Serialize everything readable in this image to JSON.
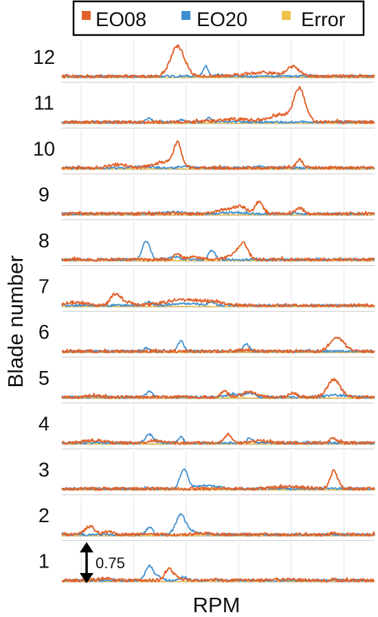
{
  "chart_data": {
    "type": "line",
    "xlabel": "RPM",
    "ylabel": "Blade number",
    "legend": {
      "placement": "top",
      "entries": [
        "EO08",
        "EO20",
        "Error"
      ]
    },
    "annotation": "0.75",
    "grid": true,
    "categories": [
      "1",
      "2",
      "3",
      "4",
      "5",
      "6",
      "7",
      "8",
      "9",
      "10",
      "11",
      "12"
    ],
    "x_domain": [
      0,
      1
    ],
    "colors": {
      "EO08": "#e1622b",
      "EO20": "#3f8fd0",
      "Error": "#efc14a",
      "baseline": "#b2b2b2"
    },
    "series": [
      {
        "name": "EO08",
        "peaks": [
          {
            "blade": 1,
            "peaks": [
              [
                0.13,
                0.08,
                0.022
              ],
              [
                0.34,
                0.4,
                0.012
              ],
              [
                0.36,
                0.16,
                0.015
              ],
              [
                0.72,
                0.05,
                0.03
              ]
            ]
          },
          {
            "blade": 2,
            "peaks": [
              [
                0.09,
                0.35,
                0.015
              ],
              [
                0.15,
                0.12,
                0.015
              ],
              [
                0.45,
                0.05,
                0.03
              ],
              [
                0.87,
                0.06,
                0.01
              ]
            ]
          },
          {
            "blade": 3,
            "peaks": [
              [
                0.73,
                0.08,
                0.05
              ],
              [
                0.87,
                0.73,
                0.012
              ]
            ]
          },
          {
            "blade": 4,
            "peaks": [
              [
                0.1,
                0.11,
                0.03
              ],
              [
                0.3,
                0.1,
                0.02
              ],
              [
                0.53,
                0.35,
                0.012
              ],
              [
                0.63,
                0.1,
                0.025
              ],
              [
                0.87,
                0.18,
                0.012
              ]
            ]
          },
          {
            "blade": 5,
            "peaks": [
              [
                0.1,
                0.06,
                0.02
              ],
              [
                0.52,
                0.22,
                0.012
              ],
              [
                0.6,
                0.18,
                0.025
              ],
              [
                0.74,
                0.16,
                0.012
              ],
              [
                0.87,
                0.75,
                0.02
              ]
            ]
          },
          {
            "blade": 6,
            "peaks": [
              [
                0.58,
                0.05,
                0.02
              ],
              [
                0.88,
                0.55,
                0.022
              ]
            ]
          },
          {
            "blade": 7,
            "peaks": [
              [
                0.04,
                0.12,
                0.03
              ],
              [
                0.17,
                0.43,
                0.015
              ],
              [
                0.2,
                0.15,
                0.02
              ],
              [
                0.38,
                0.24,
                0.05
              ],
              [
                0.48,
                0.14,
                0.04
              ]
            ]
          },
          {
            "blade": 8,
            "peaks": [
              [
                0.37,
                0.22,
                0.012
              ],
              [
                0.42,
                0.1,
                0.02
              ],
              [
                0.58,
                0.62,
                0.015
              ],
              [
                0.55,
                0.22,
                0.02
              ]
            ]
          },
          {
            "blade": 9,
            "peaks": [
              [
                0.52,
                0.15,
                0.025
              ],
              [
                0.57,
                0.3,
                0.02
              ],
              [
                0.63,
                0.5,
                0.012
              ],
              [
                0.76,
                0.25,
                0.012
              ]
            ]
          },
          {
            "blade": 10,
            "peaks": [
              [
                0.18,
                0.14,
                0.03
              ],
              [
                0.33,
                0.25,
                0.035
              ],
              [
                0.37,
                0.95,
                0.012
              ],
              [
                0.76,
                0.35,
                0.01
              ]
            ]
          },
          {
            "blade": 11,
            "peaks": [
              [
                0.55,
                0.12,
                0.06
              ],
              [
                0.7,
                0.3,
                0.035
              ],
              [
                0.76,
                1.35,
                0.018
              ]
            ]
          },
          {
            "blade": 12,
            "peaks": [
              [
                0.37,
                1.25,
                0.022
              ],
              [
                0.64,
                0.15,
                0.05
              ],
              [
                0.74,
                0.38,
                0.02
              ]
            ]
          }
        ]
      },
      {
        "name": "EO20",
        "peaks": [
          {
            "blade": 1,
            "peaks": [
              [
                0.28,
                0.62,
                0.012
              ],
              [
                0.31,
                0.14,
                0.01
              ],
              [
                0.39,
                0.09,
                0.012
              ]
            ]
          },
          {
            "blade": 2,
            "peaks": [
              [
                0.28,
                0.3,
                0.01
              ],
              [
                0.38,
                0.82,
                0.015
              ],
              [
                0.42,
                0.12,
                0.02
              ]
            ]
          },
          {
            "blade": 3,
            "peaks": [
              [
                0.39,
                0.82,
                0.012
              ],
              [
                0.45,
                0.12,
                0.03
              ],
              [
                0.5,
                0.06,
                0.02
              ]
            ]
          },
          {
            "blade": 4,
            "peaks": [
              [
                0.28,
                0.35,
                0.012
              ],
              [
                0.38,
                0.26,
                0.008
              ],
              [
                0.6,
                0.2,
                0.008
              ]
            ]
          },
          {
            "blade": 5,
            "peaks": [
              [
                0.28,
                0.22,
                0.01
              ],
              [
                0.55,
                0.12,
                0.02
              ],
              [
                0.6,
                0.18,
                0.015
              ],
              [
                0.88,
                0.08,
                0.03
              ]
            ]
          },
          {
            "blade": 6,
            "peaks": [
              [
                0.27,
                0.12,
                0.01
              ],
              [
                0.38,
                0.42,
                0.01
              ],
              [
                0.59,
                0.3,
                0.01
              ]
            ]
          },
          {
            "blade": 7,
            "peaks": [
              [
                0.28,
                0.12,
                0.01
              ],
              [
                0.48,
                0.12,
                0.01
              ],
              [
                0.4,
                0.08,
                0.04
              ]
            ]
          },
          {
            "blade": 8,
            "peaks": [
              [
                0.27,
                0.78,
                0.012
              ],
              [
                0.48,
                0.38,
                0.01
              ],
              [
                0.36,
                0.1,
                0.02
              ]
            ]
          },
          {
            "blade": 9,
            "peaks": [
              [
                0.36,
                0.08,
                0.03
              ],
              [
                0.55,
                0.05,
                0.03
              ]
            ]
          },
          {
            "blade": 10,
            "peaks": [
              [
                0.26,
                0.05,
                0.03
              ],
              [
                0.4,
                0.08,
                0.02
              ],
              [
                0.62,
                0.05,
                0.03
              ]
            ]
          },
          {
            "blade": 11,
            "peaks": [
              [
                0.28,
                0.15,
                0.008
              ],
              [
                0.38,
                0.1,
                0.008
              ],
              [
                0.47,
                0.18,
                0.01
              ]
            ]
          },
          {
            "blade": 12,
            "peaks": [
              [
                0.46,
                0.4,
                0.008
              ],
              [
                0.5,
                0.08,
                0.01
              ]
            ]
          }
        ]
      },
      {
        "name": "Error",
        "peaks": []
      }
    ]
  }
}
